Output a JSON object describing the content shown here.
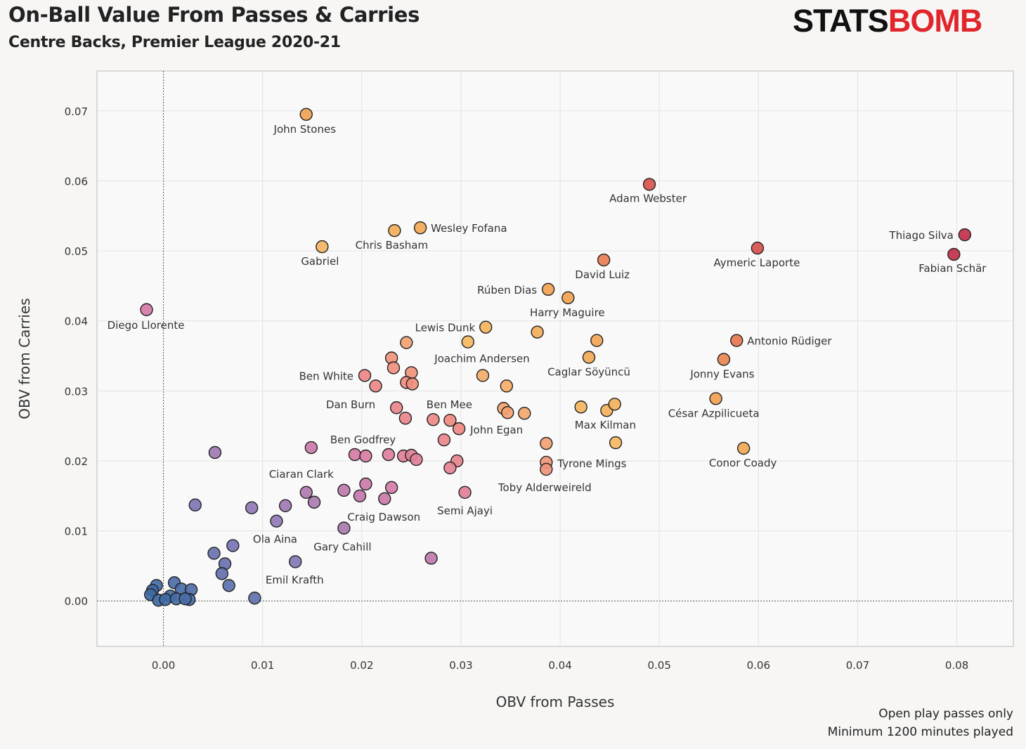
{
  "header": {
    "title": "On-Ball Value From Passes & Carries",
    "subtitle": "Centre Backs, Premier League 2020-21",
    "logo": "STATSBOMB",
    "logo_part1": "STATS",
    "logo_part2": "BOMB"
  },
  "notes": [
    "Open play passes only",
    "Minimum 1200 minutes played"
  ],
  "chart_data": {
    "type": "scatter",
    "title": "On-Ball Value From Passes & Carries",
    "subtitle": "Centre Backs, Premier League 2020-21",
    "xlabel": "OBV from Passes",
    "ylabel": "OBV from Carries",
    "xlim": [
      -0.0067,
      0.0857
    ],
    "ylim": [
      -0.0065,
      0.0757
    ],
    "xticks": [
      "0.00",
      "0.01",
      "0.02",
      "0.03",
      "0.04",
      "0.05",
      "0.06",
      "0.07",
      "0.08"
    ],
    "yticks": [
      "0.00",
      "0.01",
      "0.02",
      "0.03",
      "0.04",
      "0.05",
      "0.06",
      "0.07"
    ],
    "grid": true,
    "color_by": "total OBV",
    "colormap": [
      [
        0,
        "#3d6aa3"
      ],
      [
        0.02,
        "#8878b8"
      ],
      [
        0.04,
        "#d77aa6"
      ],
      [
        0.055,
        "#f08a80"
      ],
      [
        0.068,
        "#f5b860"
      ],
      [
        0.085,
        "#f0a050"
      ],
      [
        0.1,
        "#e06050"
      ],
      [
        0.13,
        "#c0304a"
      ]
    ],
    "points": [
      {
        "x": 0.0144,
        "y": 0.0695,
        "label": "John Stones"
      },
      {
        "x": 0.049,
        "y": 0.0595,
        "label": "Adam Webster"
      },
      {
        "x": 0.0259,
        "y": 0.0533,
        "label": "Wesley Fofana"
      },
      {
        "x": 0.0233,
        "y": 0.0529,
        "label": "Chris Basham"
      },
      {
        "x": 0.016,
        "y": 0.0506,
        "label": "Gabriel"
      },
      {
        "x": 0.0808,
        "y": 0.0523,
        "label": "Thiago Silva"
      },
      {
        "x": 0.0797,
        "y": 0.0495,
        "label": "Fabian Schär"
      },
      {
        "x": 0.0599,
        "y": 0.0504,
        "label": "Aymeric Laporte"
      },
      {
        "x": 0.0444,
        "y": 0.0487,
        "label": "David Luiz"
      },
      {
        "x": 0.0388,
        "y": 0.0445,
        "label": "Rúben Dias"
      },
      {
        "x": 0.0408,
        "y": 0.0433,
        "label": "Harry Maguire"
      },
      {
        "x": -0.0017,
        "y": 0.0416,
        "label": "Diego Llorente"
      },
      {
        "x": 0.0325,
        "y": 0.0391,
        "label": "Lewis Dunk"
      },
      {
        "x": 0.0307,
        "y": 0.037
      },
      {
        "x": 0.0377,
        "y": 0.0384
      },
      {
        "x": 0.0437,
        "y": 0.0372
      },
      {
        "x": 0.0578,
        "y": 0.0372,
        "label": "Antonio Rüdiger"
      },
      {
        "x": 0.0565,
        "y": 0.0345,
        "label": "Jonny Evans"
      },
      {
        "x": 0.0429,
        "y": 0.0348,
        "label": "Caglar Söyüncü"
      },
      {
        "x": 0.0245,
        "y": 0.0369
      },
      {
        "x": 0.023,
        "y": 0.0347
      },
      {
        "x": 0.0232,
        "y": 0.0333
      },
      {
        "x": 0.025,
        "y": 0.0326
      },
      {
        "x": 0.0245,
        "y": 0.0312
      },
      {
        "x": 0.0251,
        "y": 0.031
      },
      {
        "x": 0.0203,
        "y": 0.0322,
        "label": "Ben White"
      },
      {
        "x": 0.0214,
        "y": 0.0307
      },
      {
        "x": 0.0322,
        "y": 0.0322,
        "label": "Joachim Andersen"
      },
      {
        "x": 0.0346,
        "y": 0.0307
      },
      {
        "x": 0.0557,
        "y": 0.0289,
        "label": "César Azpilicueta"
      },
      {
        "x": 0.0421,
        "y": 0.0277
      },
      {
        "x": 0.0447,
        "y": 0.0272,
        "label": "Max Kilman"
      },
      {
        "x": 0.0455,
        "y": 0.0281
      },
      {
        "x": 0.0456,
        "y": 0.0226
      },
      {
        "x": 0.0585,
        "y": 0.0218,
        "label": "Conor Coady"
      },
      {
        "x": 0.0235,
        "y": 0.0276,
        "label": "Dan Burn"
      },
      {
        "x": 0.0244,
        "y": 0.0261
      },
      {
        "x": 0.0272,
        "y": 0.0259
      },
      {
        "x": 0.0289,
        "y": 0.0258,
        "label": "Ben Mee"
      },
      {
        "x": 0.0298,
        "y": 0.0246,
        "label": "John Egan"
      },
      {
        "x": 0.0283,
        "y": 0.023
      },
      {
        "x": 0.0343,
        "y": 0.0275
      },
      {
        "x": 0.0347,
        "y": 0.0269
      },
      {
        "x": 0.0364,
        "y": 0.0268
      },
      {
        "x": 0.0386,
        "y": 0.0225
      },
      {
        "x": 0.0386,
        "y": 0.0198,
        "label": "Tyrone Mings"
      },
      {
        "x": 0.0386,
        "y": 0.0188,
        "label": "Toby Alderweireld"
      },
      {
        "x": 0.0193,
        "y": 0.0209
      },
      {
        "x": 0.0204,
        "y": 0.0207
      },
      {
        "x": 0.0227,
        "y": 0.0209
      },
      {
        "x": 0.0242,
        "y": 0.0207
      },
      {
        "x": 0.025,
        "y": 0.0208
      },
      {
        "x": 0.0255,
        "y": 0.0202
      },
      {
        "x": 0.0296,
        "y": 0.02
      },
      {
        "x": 0.0289,
        "y": 0.019
      },
      {
        "x": 0.0149,
        "y": 0.0219,
        "label": "Ben Godfrey"
      },
      {
        "x": 0.0052,
        "y": 0.0212
      },
      {
        "x": 0.0304,
        "y": 0.0155,
        "label": "Semi Ajayi"
      },
      {
        "x": 0.0204,
        "y": 0.0167
      },
      {
        "x": 0.023,
        "y": 0.0162
      },
      {
        "x": 0.0198,
        "y": 0.015
      },
      {
        "x": 0.0223,
        "y": 0.0146,
        "label": "Craig Dawson"
      },
      {
        "x": 0.0182,
        "y": 0.0158
      },
      {
        "x": 0.0144,
        "y": 0.0155,
        "label": "Ciaran Clark"
      },
      {
        "x": 0.0152,
        "y": 0.0141
      },
      {
        "x": 0.0182,
        "y": 0.0104,
        "label": "Gary Cahill"
      },
      {
        "x": 0.027,
        "y": 0.0061
      },
      {
        "x": 0.0032,
        "y": 0.0137
      },
      {
        "x": 0.0089,
        "y": 0.0133
      },
      {
        "x": 0.0123,
        "y": 0.0136
      },
      {
        "x": 0.0114,
        "y": 0.0114,
        "label": "Ola Aina"
      },
      {
        "x": 0.007,
        "y": 0.0079
      },
      {
        "x": 0.0051,
        "y": 0.0068
      },
      {
        "x": 0.0062,
        "y": 0.0053
      },
      {
        "x": 0.0059,
        "y": 0.0039
      },
      {
        "x": 0.0066,
        "y": 0.0022
      },
      {
        "x": 0.0133,
        "y": 0.0056,
        "label": "Emil Krafth"
      },
      {
        "x": 0.0092,
        "y": 0.0004
      },
      {
        "x": -0.0007,
        "y": 0.0022
      },
      {
        "x": -0.0011,
        "y": 0.0015
      },
      {
        "x": -0.0013,
        "y": 0.0009
      },
      {
        "x": -0.0005,
        "y": 0.0001
      },
      {
        "x": 0.0011,
        "y": 0.0026
      },
      {
        "x": 0.0018,
        "y": 0.0017
      },
      {
        "x": 0.0028,
        "y": 0.0016
      },
      {
        "x": 0.0007,
        "y": 0.0007
      },
      {
        "x": 0.0002,
        "y": 0.0002
      },
      {
        "x": 0.0013,
        "y": 0.0003
      },
      {
        "x": 0.0026,
        "y": 0.0002
      },
      {
        "x": 0.0022,
        "y": 0.0003
      }
    ]
  }
}
